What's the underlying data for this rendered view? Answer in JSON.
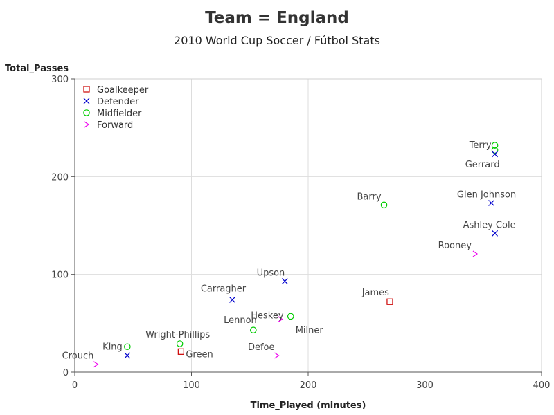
{
  "chart_data": {
    "type": "scatter",
    "title": "Team = England",
    "subtitle": "2010 World Cup Soccer / Fútbol Stats",
    "xlabel": "Time_Played (minutes)",
    "ylabel": "Total_Passes",
    "xlim": [
      0,
      400
    ],
    "ylim": [
      0,
      300
    ],
    "xticks": [
      0,
      100,
      200,
      300,
      400
    ],
    "yticks": [
      0,
      100,
      200,
      300
    ],
    "grid": true,
    "legend_position": "top-left",
    "groups": [
      {
        "name": "Goalkeeper",
        "marker": "square",
        "color": "#cc0000"
      },
      {
        "name": "Defender",
        "marker": "x",
        "color": "#0000cc"
      },
      {
        "name": "Midfielder",
        "marker": "circle",
        "color": "#00cc00"
      },
      {
        "name": "Forward",
        "marker": "chevron",
        "color": "#ee00ee"
      }
    ],
    "points": [
      {
        "label": "Terry",
        "group": "Midfielder",
        "x": 360,
        "y": 232
      },
      {
        "label": "",
        "group": "Midfielder",
        "x": 360,
        "y": 227
      },
      {
        "label": "Gerrard",
        "group": "Defender",
        "x": 360,
        "y": 223
      },
      {
        "label": "Glen Johnson",
        "group": "Defender",
        "x": 357,
        "y": 173
      },
      {
        "label": "Barry",
        "group": "Midfielder",
        "x": 265,
        "y": 171
      },
      {
        "label": "Ashley Cole",
        "group": "Defender",
        "x": 360,
        "y": 142
      },
      {
        "label": "Rooney",
        "group": "Forward",
        "x": 343,
        "y": 121
      },
      {
        "label": "Upson",
        "group": "Defender",
        "x": 180,
        "y": 93
      },
      {
        "label": "Carragher",
        "group": "Defender",
        "x": 135,
        "y": 74
      },
      {
        "label": "James",
        "group": "Goalkeeper",
        "x": 270,
        "y": 72
      },
      {
        "label": "Milner",
        "group": "Midfielder",
        "x": 185,
        "y": 57
      },
      {
        "label": "Heskey",
        "group": "Forward",
        "x": 176,
        "y": 54
      },
      {
        "label": "Lennon",
        "group": "Midfielder",
        "x": 153,
        "y": 43
      },
      {
        "label": "Wright-Phillips",
        "group": "Midfielder",
        "x": 90,
        "y": 29
      },
      {
        "label": "King",
        "group": "Midfielder",
        "x": 45,
        "y": 26
      },
      {
        "label": "Green",
        "group": "Goalkeeper",
        "x": 91,
        "y": 21
      },
      {
        "label": "Defoe",
        "group": "Forward",
        "x": 173,
        "y": 17
      },
      {
        "label": "",
        "group": "Defender",
        "x": 45,
        "y": 17
      },
      {
        "label": "Crouch",
        "group": "Forward",
        "x": 18,
        "y": 8
      }
    ]
  }
}
